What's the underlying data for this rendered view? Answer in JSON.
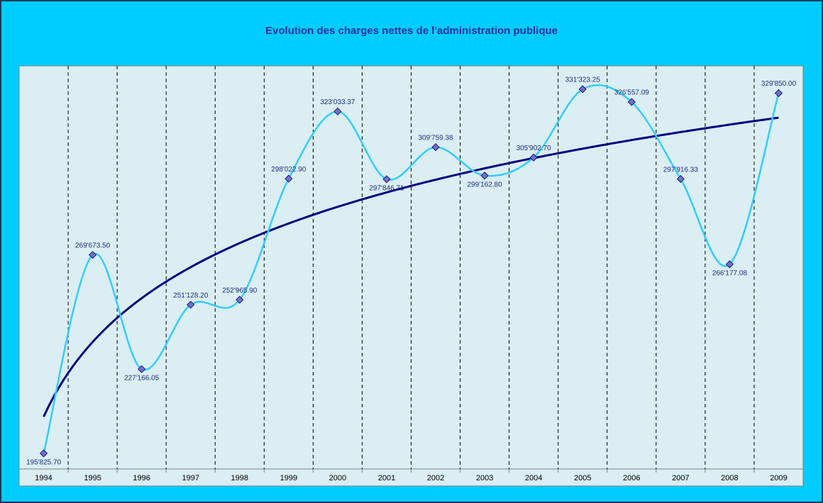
{
  "chart_data": {
    "type": "line",
    "title": "Evolution des charges nettes de l'administration publique",
    "categories": [
      "1994",
      "1995",
      "1996",
      "1997",
      "1998",
      "1999",
      "2000",
      "2001",
      "2002",
      "2003",
      "2004",
      "2005",
      "2006",
      "2007",
      "2008",
      "2009"
    ],
    "series": [
      {
        "color": "#33ccff",
        "marker_color": "#7070c0",
        "smooth": true,
        "values": [
          195825.7,
          269673.5,
          227166.05,
          251128.2,
          252965.9,
          298022.9,
          323033.37,
          297846.71,
          309759.38,
          299162.8,
          305902.7,
          331323.25,
          326557.09,
          297916.33,
          266177.08,
          329850.0
        ],
        "value_labels": [
          "195'825.70",
          "269'673.50",
          "227'166.05",
          "251'128.20",
          "252'965.90",
          "298'022.90",
          "323'033.37",
          "297'846.71",
          "309'759.38",
          "299'162.80",
          "305'902.70",
          "331'323.25",
          "326'557.09",
          "297'916.33",
          "266'177.08",
          "329'850.00"
        ]
      }
    ],
    "trendline": {
      "type": "logarithmic",
      "color": "#000080"
    },
    "ylim": [
      190000,
      340000
    ],
    "grid": true
  }
}
